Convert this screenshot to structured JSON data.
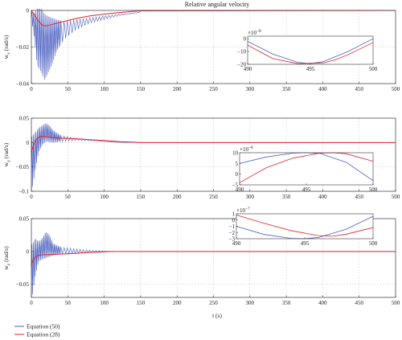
{
  "chart_data": {
    "type": "line",
    "title": "Relative angular velocity",
    "xlabel": "t (s)",
    "legend": {
      "placement": "bottom-left",
      "entries": [
        {
          "label": "Equation (50)",
          "color": "#4a5fc1"
        },
        {
          "label": "Equation (28)",
          "color": "#e8202a"
        }
      ]
    },
    "colors": {
      "eq50": "#4a5fc1",
      "eq28": "#e8202a"
    },
    "panels": [
      {
        "id": "wx",
        "ylabel": "w",
        "ylabel_sub": "x",
        "ylabel_unit": " (rad/s)",
        "xlim": [
          0,
          500
        ],
        "ylim": [
          -0.04,
          0
        ],
        "xticks": [
          0,
          50,
          100,
          150,
          200,
          250,
          300,
          350,
          400,
          450,
          500
        ],
        "yticks": [
          0,
          -0.02,
          -0.04
        ],
        "ytick_labels": [
          "0",
          "-0.02",
          "-0.04"
        ],
        "grid": true,
        "series": [
          {
            "key": "eq50",
            "label": "Equation (50)",
            "envelope": {
              "x": [
                0,
                3,
                8,
                14,
                18,
                22,
                28,
                35,
                45,
                60,
                80,
                100,
                120,
                150
              ],
              "min": [
                -0.004,
                -0.012,
                -0.03,
                -0.034,
                -0.038,
                -0.035,
                -0.03,
                -0.022,
                -0.016,
                -0.011,
                -0.007,
                -0.005,
                -0.003,
                -0.001
              ],
              "max": [
                0,
                -0.002,
                0.001,
                0.001,
                -0.002,
                -0.003,
                -0.004,
                -0.005,
                -0.006,
                -0.005,
                -0.004,
                -0.003,
                -0.002,
                -0.001
              ]
            }
          },
          {
            "key": "eq28",
            "label": "Equation (28)",
            "x": [
              0,
              5,
              10,
              15,
              20,
              25,
              30,
              40,
              50,
              60,
              80,
              100,
              120,
              140,
              150,
              500
            ],
            "y": [
              0,
              -0.003,
              -0.006,
              -0.008,
              -0.0085,
              -0.008,
              -0.0075,
              -0.0065,
              -0.0055,
              -0.0045,
              -0.003,
              -0.002,
              -0.0012,
              -0.0005,
              -0.0002,
              0
            ]
          }
        ],
        "inset": {
          "xlim": [
            490,
            500
          ],
          "ylim": [
            -2e-07,
            2e-08
          ],
          "xticks": [
            490,
            495,
            500
          ],
          "ytick_labels": [
            "0",
            "-10",
            "-20"
          ],
          "yticks": [
            0,
            -1e-07,
            -2e-07
          ],
          "exponent": "×10",
          "exponent_power": "-8",
          "series": [
            {
              "key": "eq50",
              "x": [
                490,
                492,
                494,
                495,
                496,
                498,
                500
              ],
              "y": [
                -2e-08,
                -1.2e-07,
                -1.85e-07,
                -1.95e-07,
                -1.8e-07,
                -1e-07,
                0
              ]
            },
            {
              "key": "eq28",
              "x": [
                490,
                492,
                494,
                496,
                497,
                498,
                500
              ],
              "y": [
                -5e-08,
                -1.55e-07,
                -1.95e-07,
                -1.9e-07,
                -1.65e-07,
                -1.25e-07,
                -3e-08
              ]
            }
          ]
        }
      },
      {
        "id": "wy",
        "ylabel": "w",
        "ylabel_sub": "y",
        "ylabel_unit": " (rad/s)",
        "xlim": [
          0,
          500
        ],
        "ylim": [
          -0.1,
          0.05
        ],
        "xticks": [
          0,
          50,
          100,
          150,
          200,
          250,
          300,
          350,
          400,
          450,
          500
        ],
        "yticks": [
          0.05,
          0,
          -0.05,
          -0.1
        ],
        "ytick_labels": [
          "0.05",
          "0",
          "-0.05",
          "-0.1"
        ],
        "grid": true,
        "series": [
          {
            "key": "eq50",
            "label": "Equation (50)",
            "envelope": {
              "x": [
                0,
                2,
                5,
                10,
                15,
                20,
                25,
                30,
                40,
                60,
                80,
                100,
                120,
                150
              ],
              "min": [
                -0.095,
                -0.09,
                -0.06,
                -0.02,
                -0.005,
                0.002,
                0.001,
                0.0,
                0.002,
                0.004,
                0.004,
                0.002,
                0.0,
                0.0
              ],
              "max": [
                0.01,
                0.015,
                0.02,
                0.03,
                0.035,
                0.04,
                0.035,
                0.025,
                0.015,
                0.009,
                0.006,
                0.003,
                0.001,
                0.0
              ]
            }
          },
          {
            "key": "eq28",
            "label": "Equation (28)",
            "x": [
              0,
              3,
              6,
              10,
              15,
              20,
              25,
              30,
              40,
              60,
              80,
              100,
              120,
              140,
              150,
              500
            ],
            "y": [
              -0.02,
              -0.005,
              0.005,
              0.011,
              0.013,
              0.012,
              0.011,
              0.01,
              0.009,
              0.008,
              0.006,
              0.004,
              0.002,
              0.0008,
              0.0,
              0
            ]
          }
        ],
        "inset": {
          "xlim": [
            490,
            500
          ],
          "ylim": [
            -5e-08,
            1e-07
          ],
          "xticks": [
            490,
            495,
            500
          ],
          "ytick_labels": [
            "10",
            "5",
            "0",
            "-5"
          ],
          "yticks": [
            1e-07,
            5e-08,
            0,
            -5e-08
          ],
          "exponent": "×10",
          "exponent_power": "-8",
          "series": [
            {
              "key": "eq50",
              "x": [
                490,
                492,
                494,
                495,
                496,
                498,
                500
              ],
              "y": [
                5e-08,
                8e-08,
                9.8e-08,
                1e-07,
                9.7e-08,
                5.5e-08,
                -3e-08
              ]
            },
            {
              "key": "eq28",
              "x": [
                490,
                492,
                494,
                496,
                497,
                498,
                500
              ],
              "y": [
                -4e-08,
                3e-08,
                7.5e-08,
                9.8e-08,
                1e-07,
                9.5e-08,
                6e-08
              ]
            }
          ]
        }
      },
      {
        "id": "wz",
        "ylabel": "w",
        "ylabel_sub": "z",
        "ylabel_unit": " (rad/s)",
        "xlim": [
          0,
          500
        ],
        "ylim": [
          -0.07,
          0.05
        ],
        "xticks": [
          0,
          50,
          100,
          150,
          200,
          250,
          300,
          350,
          400,
          450,
          500
        ],
        "yticks": [
          0.05,
          0,
          -0.05
        ],
        "ytick_labels": [
          "0.05",
          "0",
          "-0.05"
        ],
        "grid": true,
        "series": [
          {
            "key": "eq50",
            "label": "Equation (50)",
            "envelope": {
              "x": [
                0,
                2,
                5,
                10,
                15,
                20,
                25,
                30,
                40,
                60,
                80,
                100,
                120,
                150
              ],
              "min": [
                -0.07,
                -0.065,
                -0.04,
                -0.015,
                -0.012,
                -0.01,
                -0.008,
                -0.006,
                -0.004,
                -0.003,
                -0.002,
                -0.001,
                0.0,
                0.0
              ],
              "max": [
                0.01,
                0.012,
                0.02,
                0.015,
                0.02,
                0.03,
                0.025,
                0.012,
                0.007,
                0.004,
                0.002,
                0.001,
                0.0,
                0.0
              ]
            }
          },
          {
            "key": "eq28",
            "label": "Equation (28)",
            "x": [
              0,
              3,
              6,
              10,
              15,
              20,
              25,
              30,
              40,
              60,
              80,
              100,
              110,
              500
            ],
            "y": [
              -0.02,
              -0.012,
              -0.008,
              -0.006,
              -0.005,
              -0.005,
              -0.005,
              -0.0045,
              -0.004,
              -0.003,
              -0.0015,
              -0.0005,
              0,
              0
            ]
          }
        ],
        "inset": {
          "xlim": [
            490,
            500
          ],
          "ylim": [
            -3e-07,
            1e-07
          ],
          "xticks": [
            490,
            495,
            500
          ],
          "ytick_labels": [
            "1",
            "0",
            "-1",
            "-2",
            "-3"
          ],
          "yticks": [
            1e-07,
            0,
            -1e-07,
            -2e-07,
            -3e-07
          ],
          "exponent": "×10",
          "exponent_power": "-7",
          "series": [
            {
              "key": "eq50",
              "x": [
                490,
                492,
                494,
                495,
                496,
                498,
                500
              ],
              "y": [
                -1e-07,
                -2.3e-07,
                -2.95e-07,
                -3e-07,
                -2.8e-07,
                -1.5e-07,
                6e-08
              ]
            },
            {
              "key": "eq28",
              "x": [
                490,
                492,
                494,
                496,
                497,
                498,
                500
              ],
              "y": [
                8e-08,
                -5e-08,
                -1.7e-07,
                -2.5e-07,
                -2.6e-07,
                -2.3e-07,
                -1.2e-07
              ]
            }
          ]
        }
      }
    ]
  }
}
